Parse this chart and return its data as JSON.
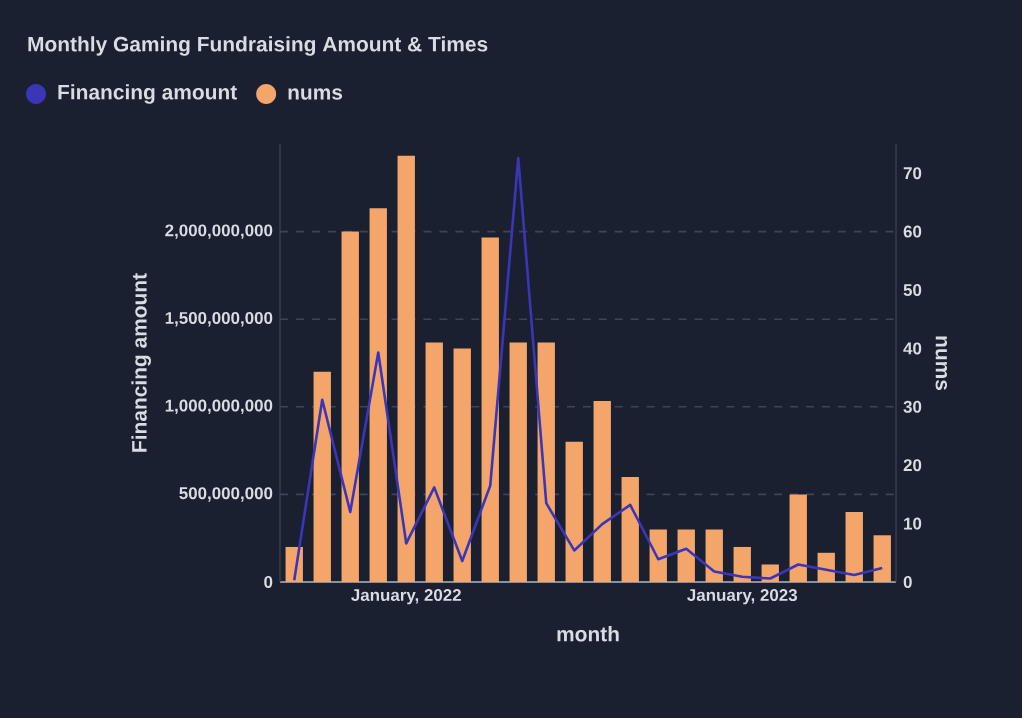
{
  "chart_data": {
    "type": "bar",
    "title": "Monthly Gaming Fundraising Amount & Times",
    "xlabel": "month",
    "ylabel": "Financing amount",
    "y2label": "nums",
    "x": [
      "2021-09",
      "2021-10",
      "2021-11",
      "2021-12",
      "2022-01",
      "2022-02",
      "2022-03",
      "2022-04",
      "2022-05",
      "2022-06",
      "2022-07",
      "2022-08",
      "2022-09",
      "2022-10",
      "2022-11",
      "2022-12",
      "2023-01",
      "2023-02",
      "2023-03",
      "2023-04",
      "2023-05",
      "2023-06"
    ],
    "xlim": [
      "2021-08-16",
      "2023-06-16"
    ],
    "xticks": [
      {
        "value": "2022-01",
        "label": "January, 2022"
      },
      {
        "value": "2023-01",
        "label": "January, 2023"
      }
    ],
    "ylim": [
      0,
      2500000000
    ],
    "yticks": [
      0,
      {
        "value": 500000000,
        "label": "500,000,000"
      },
      {
        "value": 1000000000,
        "label": "1,000,000,000"
      },
      {
        "value": 1500000000,
        "label": "1,500,000,000"
      },
      {
        "value": 2000000000,
        "label": "2,000,000,000"
      }
    ],
    "y2lim": [
      0,
      75
    ],
    "y2ticks": [
      0,
      10,
      20,
      30,
      40,
      50,
      60,
      70
    ],
    "series": [
      {
        "name": "Financing amount",
        "type": "line",
        "color": "#3b36b8",
        "values": [
          10000000,
          1040000000,
          400000000,
          1310000000,
          220000000,
          540000000,
          120000000,
          550000000,
          2420000000,
          450000000,
          180000000,
          330000000,
          440000000,
          130000000,
          190000000,
          60000000,
          30000000,
          20000000,
          100000000,
          70000000,
          40000000,
          80000000
        ]
      },
      {
        "name": "nums",
        "axis": "y2",
        "color": "#f4a66a",
        "values": [
          6,
          36,
          60,
          64,
          73,
          41,
          40,
          59,
          41,
          41,
          24,
          31,
          18,
          9,
          9,
          9,
          6,
          3,
          15,
          5,
          12,
          8
        ]
      }
    ],
    "grid": "y",
    "legend": "top left",
    "marker": "none",
    "line_style": "solid"
  }
}
